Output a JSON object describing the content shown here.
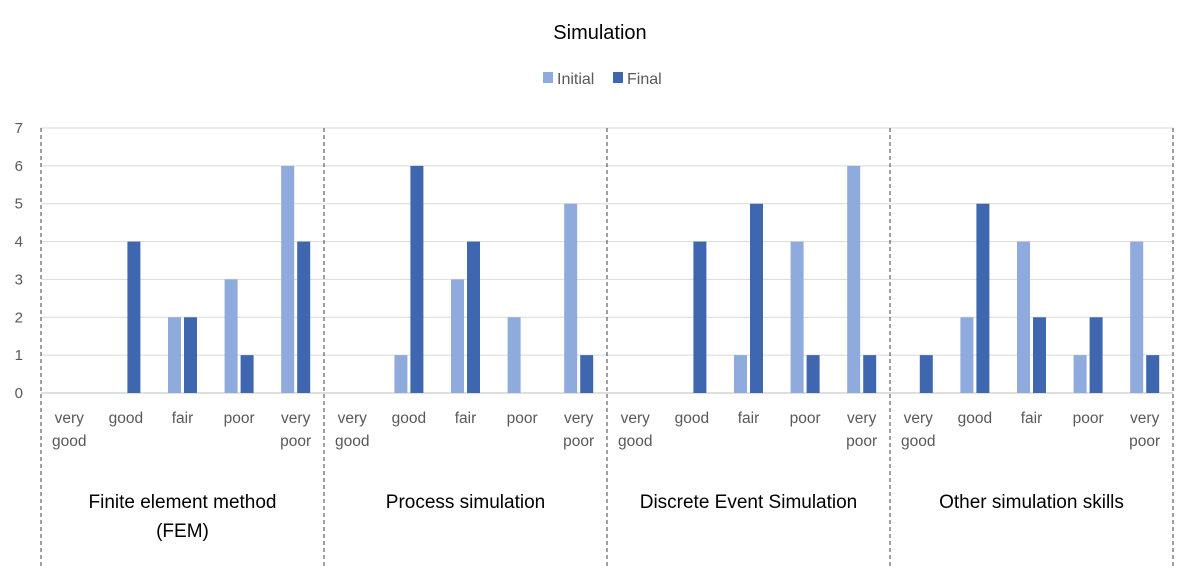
{
  "chart_data": {
    "type": "bar",
    "title": "Simulation",
    "legend": {
      "placement": "top-center",
      "entries": [
        "Initial",
        "Final"
      ]
    },
    "ylim": [
      0,
      7
    ],
    "yticks": [
      0,
      1,
      2,
      3,
      4,
      5,
      6,
      7
    ],
    "grid": true,
    "categories": [
      [
        "very",
        "good"
      ],
      [
        "good"
      ],
      [
        "fair"
      ],
      [
        "poor"
      ],
      [
        "very",
        "poor"
      ]
    ],
    "colors": {
      "Initial": "#8faadc",
      "Final": "#3f67b0"
    },
    "groups": [
      {
        "label": [
          "Finite element method",
          "(FEM)"
        ],
        "series": [
          {
            "name": "Initial",
            "values": [
              0,
              0,
              2,
              3,
              6
            ]
          },
          {
            "name": "Final",
            "values": [
              0,
              4,
              2,
              1,
              4
            ]
          }
        ]
      },
      {
        "label": [
          "Process simulation"
        ],
        "series": [
          {
            "name": "Initial",
            "values": [
              0,
              1,
              3,
              2,
              5
            ]
          },
          {
            "name": "Final",
            "values": [
              0,
              6,
              4,
              0,
              1
            ]
          }
        ]
      },
      {
        "label": [
          "Discrete Event Simulation"
        ],
        "series": [
          {
            "name": "Initial",
            "values": [
              0,
              0,
              1,
              4,
              6
            ]
          },
          {
            "name": "Final",
            "values": [
              0,
              4,
              5,
              1,
              1
            ]
          }
        ]
      },
      {
        "label": [
          "Other simulation skills"
        ],
        "series": [
          {
            "name": "Initial",
            "values": [
              0,
              2,
              4,
              1,
              4
            ]
          },
          {
            "name": "Final",
            "values": [
              1,
              5,
              2,
              2,
              1
            ]
          }
        ]
      }
    ]
  }
}
